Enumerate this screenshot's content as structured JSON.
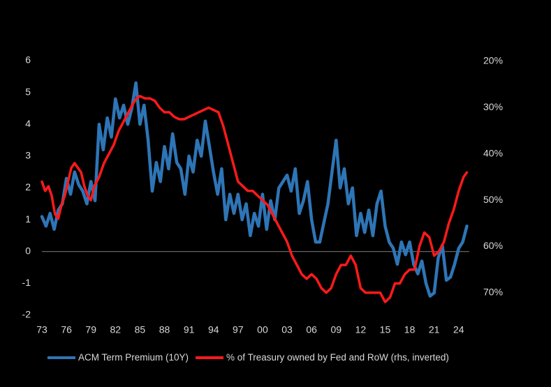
{
  "chart_data": {
    "type": "line",
    "title": "",
    "x_ticks": [
      "73",
      "76",
      "79",
      "82",
      "85",
      "88",
      "91",
      "94",
      "97",
      "00",
      "03",
      "06",
      "09",
      "12",
      "15",
      "18",
      "21",
      "24"
    ],
    "xlim": [
      1973,
      2025.3
    ],
    "y_left": {
      "ticks": [
        "6",
        "5",
        "4",
        "3",
        "2",
        "1",
        "0",
        "-1",
        "-2"
      ],
      "ylim": [
        -2,
        6
      ]
    },
    "y_right": {
      "ticks": [
        "20%",
        "30%",
        "40%",
        "50%",
        "60%",
        "70%"
      ],
      "ylim": [
        20,
        75
      ],
      "inverted": true,
      "unit": "%"
    },
    "grid": false,
    "legend_position": "bottom",
    "colors": {
      "background": "#000000",
      "text": "#d9d9d9",
      "axis": "#7f7f7f"
    },
    "series": [
      {
        "name": "ACM Term Premium (10Y)",
        "axis": "left",
        "color": "#2e75b6",
        "x": [
          1973.0,
          1973.5,
          1974.0,
          1974.5,
          1975.0,
          1975.5,
          1976.0,
          1976.5,
          1977.0,
          1977.5,
          1978.0,
          1978.5,
          1979.0,
          1979.5,
          1980.0,
          1980.5,
          1981.0,
          1981.5,
          1982.0,
          1982.5,
          1983.0,
          1983.5,
          1984.0,
          1984.5,
          1985.0,
          1985.5,
          1986.0,
          1986.5,
          1987.0,
          1987.5,
          1988.0,
          1988.5,
          1989.0,
          1989.5,
          1990.0,
          1990.5,
          1991.0,
          1991.5,
          1992.0,
          1992.5,
          1993.0,
          1993.5,
          1994.0,
          1994.5,
          1995.0,
          1995.5,
          1996.0,
          1996.5,
          1997.0,
          1997.5,
          1998.0,
          1998.5,
          1999.0,
          1999.5,
          2000.0,
          2000.5,
          2001.0,
          2001.5,
          2002.0,
          2002.5,
          2003.0,
          2003.5,
          2004.0,
          2004.5,
          2005.0,
          2005.5,
          2006.0,
          2006.5,
          2007.0,
          2007.5,
          2008.0,
          2008.5,
          2009.0,
          2009.5,
          2010.0,
          2010.5,
          2011.0,
          2011.5,
          2012.0,
          2012.5,
          2013.0,
          2013.5,
          2014.0,
          2014.5,
          2015.0,
          2015.5,
          2016.0,
          2016.5,
          2017.0,
          2017.5,
          2018.0,
          2018.5,
          2019.0,
          2019.5,
          2020.0,
          2020.5,
          2021.0,
          2021.5,
          2022.0,
          2022.5,
          2023.0,
          2023.5,
          2024.0,
          2024.5,
          2025.0
        ],
        "values": [
          1.1,
          0.8,
          1.2,
          0.7,
          1.3,
          1.5,
          2.3,
          1.8,
          2.5,
          2.1,
          1.9,
          1.5,
          2.2,
          1.6,
          4.0,
          3.2,
          4.2,
          3.6,
          4.8,
          4.2,
          4.6,
          4.0,
          4.5,
          5.3,
          4.0,
          4.6,
          3.5,
          1.9,
          2.8,
          2.2,
          3.3,
          2.6,
          3.7,
          2.8,
          2.6,
          1.8,
          3.0,
          2.5,
          3.5,
          3.0,
          4.1,
          3.3,
          2.5,
          1.8,
          2.6,
          1.0,
          1.8,
          1.2,
          1.8,
          1.0,
          1.5,
          0.5,
          1.2,
          0.8,
          1.8,
          0.7,
          1.6,
          1.0,
          2.0,
          2.2,
          2.4,
          1.9,
          2.6,
          1.2,
          1.6,
          2.2,
          1.0,
          0.3,
          0.3,
          0.9,
          1.5,
          2.5,
          3.5,
          2.0,
          2.6,
          1.5,
          2.0,
          0.5,
          1.2,
          0.6,
          1.3,
          0.5,
          1.5,
          1.9,
          0.8,
          0.3,
          0.1,
          -0.4,
          0.3,
          -0.1,
          0.3,
          -0.4,
          -0.7,
          -0.3,
          -1.0,
          -1.4,
          -1.3,
          -0.2,
          0.2,
          -0.9,
          -0.8,
          -0.4,
          0.1,
          0.3,
          0.8
        ]
      },
      {
        "name": "% of Treasury owned by Fed and RoW (rhs, inverted)",
        "axis": "right",
        "color": "#ff1a1a",
        "x": [
          1973.0,
          1973.4,
          1973.8,
          1974.2,
          1974.6,
          1975.0,
          1975.4,
          1975.8,
          1976.2,
          1976.6,
          1977.0,
          1977.4,
          1977.8,
          1978.2,
          1978.6,
          1979.0,
          1979.4,
          1980.0,
          1980.6,
          1981.2,
          1981.8,
          1982.4,
          1983.0,
          1983.6,
          1984.2,
          1984.6,
          1985.0,
          1985.6,
          1986.2,
          1986.8,
          1987.4,
          1988.0,
          1988.6,
          1989.2,
          1989.8,
          1990.4,
          1991.0,
          1991.6,
          1992.2,
          1992.8,
          1993.4,
          1994.0,
          1994.6,
          1995.2,
          1995.8,
          1996.4,
          1997.0,
          1997.6,
          1998.2,
          1998.8,
          1999.4,
          2000.0,
          2000.6,
          2001.2,
          2001.8,
          2002.4,
          2003.0,
          2003.6,
          2004.2,
          2004.8,
          2005.4,
          2006.0,
          2006.6,
          2007.2,
          2007.8,
          2008.4,
          2009.0,
          2009.6,
          2010.2,
          2010.8,
          2011.4,
          2012.0,
          2012.6,
          2013.2,
          2013.8,
          2014.4,
          2015.0,
          2015.6,
          2016.2,
          2016.8,
          2017.4,
          2018.0,
          2018.6,
          2019.2,
          2019.8,
          2020.4,
          2021.0,
          2021.6,
          2022.2,
          2022.8,
          2023.4,
          2024.0,
          2024.6,
          2025.0
        ],
        "values": [
          46,
          48,
          47,
          49,
          53,
          54,
          51,
          49,
          46,
          43,
          42,
          43,
          44,
          47,
          49,
          50,
          47,
          45,
          42,
          40,
          38,
          35,
          33,
          31,
          29,
          28,
          27.5,
          28,
          28,
          28.5,
          30,
          31,
          31,
          32,
          32.5,
          32.5,
          32,
          31.5,
          31,
          30.5,
          30,
          30.5,
          31,
          34,
          38,
          42,
          46,
          47,
          48,
          48,
          49,
          50,
          51,
          53,
          55,
          57,
          59,
          62,
          64,
          66,
          67,
          66,
          67,
          69,
          70,
          69,
          66,
          64,
          64,
          62,
          64,
          69,
          70,
          70,
          70,
          70,
          72,
          71,
          68,
          68,
          66,
          65,
          65,
          60,
          57,
          58,
          62,
          61,
          59,
          55,
          52,
          48,
          45,
          44
        ]
      }
    ]
  }
}
